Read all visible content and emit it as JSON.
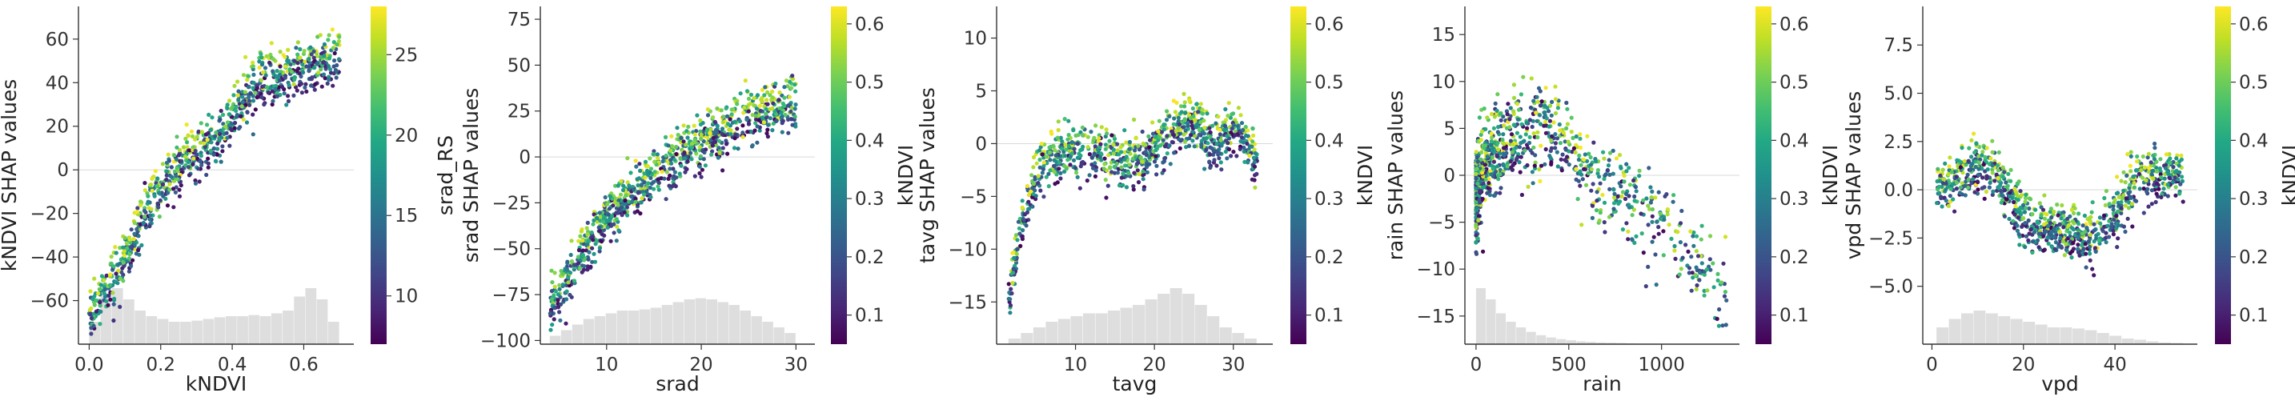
{
  "chart_data": [
    {
      "type": "scatter",
      "feature": "kNDVI",
      "xlabel": "kNDVI",
      "ylabel": "kNDVI SHAP values",
      "xlim": [
        -0.03,
        0.74
      ],
      "ylim": [
        -80,
        75
      ],
      "xticks": [
        0.0,
        0.2,
        0.4,
        0.6
      ],
      "xtick_labels": [
        "0.0",
        "0.2",
        "0.4",
        "0.6"
      ],
      "yticks": [
        -60,
        -40,
        -20,
        0,
        20,
        40,
        60
      ],
      "ytick_labels": [
        "−60",
        "−40",
        "−20",
        "0",
        "20",
        "40",
        "60"
      ],
      "colorbar": {
        "label": "srad_RS",
        "range": [
          7,
          28
        ],
        "ticks": [
          10,
          15,
          20,
          25
        ],
        "tick_labels": [
          "10",
          "15",
          "20",
          "25"
        ]
      },
      "trend": [
        [
          0.0,
          -68
        ],
        [
          0.05,
          -55
        ],
        [
          0.1,
          -40
        ],
        [
          0.15,
          -22
        ],
        [
          0.2,
          -8
        ],
        [
          0.25,
          0
        ],
        [
          0.3,
          8
        ],
        [
          0.35,
          13
        ],
        [
          0.4,
          25
        ],
        [
          0.45,
          38
        ],
        [
          0.5,
          42
        ],
        [
          0.55,
          43
        ],
        [
          0.6,
          48
        ],
        [
          0.65,
          50
        ],
        [
          0.7,
          50
        ]
      ],
      "hist": [
        0.4,
        0.9,
        1.0,
        0.8,
        0.6,
        0.5,
        0.45,
        0.4,
        0.4,
        0.42,
        0.45,
        0.48,
        0.5,
        0.5,
        0.52,
        0.5,
        0.55,
        0.6,
        0.85,
        1.0,
        0.8,
        0.4
      ]
    },
    {
      "type": "scatter",
      "feature": "srad",
      "xlabel": "srad",
      "ylabel": "srad SHAP values",
      "xlim": [
        3,
        32
      ],
      "ylim": [
        -102,
        82
      ],
      "xticks": [
        10,
        20,
        30
      ],
      "xtick_labels": [
        "10",
        "20",
        "30"
      ],
      "yticks": [
        -100,
        -75,
        -50,
        -25,
        0,
        25,
        50,
        75
      ],
      "ytick_labels": [
        "−100",
        "−75",
        "−50",
        "−25",
        "0",
        "25",
        "50",
        "75"
      ],
      "colorbar": {
        "label": "kNDVI",
        "range": [
          0.05,
          0.63
        ],
        "ticks": [
          0.1,
          0.2,
          0.3,
          0.4,
          0.5,
          0.6
        ],
        "tick_labels": [
          "0.1",
          "0.2",
          "0.3",
          "0.4",
          "0.5",
          "0.6"
        ]
      },
      "trend": [
        [
          4,
          -82
        ],
        [
          6,
          -65
        ],
        [
          8,
          -48
        ],
        [
          10,
          -33
        ],
        [
          12,
          -22
        ],
        [
          14,
          -14
        ],
        [
          16,
          -6
        ],
        [
          18,
          2
        ],
        [
          20,
          8
        ],
        [
          22,
          14
        ],
        [
          24,
          20
        ],
        [
          26,
          24
        ],
        [
          28,
          27
        ],
        [
          30,
          30
        ]
      ],
      "hist": [
        0.15,
        0.25,
        0.35,
        0.45,
        0.5,
        0.55,
        0.6,
        0.6,
        0.62,
        0.65,
        0.7,
        0.75,
        0.8,
        0.82,
        0.8,
        0.75,
        0.7,
        0.6,
        0.5,
        0.4,
        0.3,
        0.2
      ]
    },
    {
      "type": "scatter",
      "feature": "tavg",
      "xlabel": "tavg",
      "ylabel": "tavg SHAP values",
      "xlim": [
        0,
        35
      ],
      "ylim": [
        -19,
        13
      ],
      "xticks": [
        10,
        20,
        30
      ],
      "xtick_labels": [
        "10",
        "20",
        "30"
      ],
      "yticks": [
        -15,
        -10,
        -5,
        0,
        5,
        10
      ],
      "ytick_labels": [
        "−15",
        "−10",
        "−5",
        "0",
        "5",
        "10"
      ],
      "colorbar": {
        "label": "kNDVI",
        "range": [
          0.05,
          0.63
        ],
        "ticks": [
          0.1,
          0.2,
          0.3,
          0.4,
          0.5,
          0.6
        ],
        "tick_labels": [
          "0.1",
          "0.2",
          "0.3",
          "0.4",
          "0.5",
          "0.6"
        ]
      },
      "trend": [
        [
          1.5,
          -15
        ],
        [
          3,
          -8
        ],
        [
          5,
          -3
        ],
        [
          7,
          -1
        ],
        [
          10,
          -0.5
        ],
        [
          13,
          -1
        ],
        [
          16,
          -2
        ],
        [
          19,
          -1
        ],
        [
          22,
          1
        ],
        [
          25,
          2
        ],
        [
          27,
          0
        ],
        [
          29,
          1
        ],
        [
          31,
          1
        ],
        [
          33,
          -2
        ]
      ],
      "hist": [
        0.1,
        0.2,
        0.3,
        0.4,
        0.45,
        0.5,
        0.55,
        0.55,
        0.6,
        0.65,
        0.7,
        0.8,
        0.9,
        1.0,
        0.9,
        0.7,
        0.5,
        0.3,
        0.2,
        0.1
      ]
    },
    {
      "type": "scatter",
      "feature": "rain",
      "xlabel": "rain",
      "ylabel": "rain SHAP values",
      "xlim": [
        -60,
        1420
      ],
      "ylim": [
        -18,
        18
      ],
      "xticks": [
        0,
        500,
        1000
      ],
      "xtick_labels": [
        "0",
        "500",
        "1000"
      ],
      "yticks": [
        -15,
        -10,
        -5,
        0,
        5,
        10,
        15
      ],
      "ytick_labels": [
        "−15",
        "−10",
        "−5",
        "0",
        "5",
        "10",
        "15"
      ],
      "colorbar": {
        "label": "kNDVI",
        "range": [
          0.05,
          0.63
        ],
        "ticks": [
          0.1,
          0.2,
          0.3,
          0.4,
          0.5,
          0.6
        ],
        "tick_labels": [
          "0.1",
          "0.2",
          "0.3",
          "0.4",
          "0.5",
          "0.6"
        ]
      },
      "trend": [
        [
          0,
          -2
        ],
        [
          30,
          0
        ],
        [
          80,
          2
        ],
        [
          150,
          3
        ],
        [
          250,
          4
        ],
        [
          350,
          6
        ],
        [
          450,
          4
        ],
        [
          600,
          0
        ],
        [
          800,
          -2
        ],
        [
          1000,
          -5
        ],
        [
          1300,
          -12
        ]
      ],
      "hist": [
        1.0,
        0.8,
        0.55,
        0.4,
        0.3,
        0.22,
        0.16,
        0.12,
        0.09,
        0.07,
        0.05,
        0.04,
        0.03,
        0.025,
        0.02,
        0.015,
        0.01,
        0.01,
        0.008,
        0.006,
        0.005,
        0.004,
        0.003,
        0.003
      ]
    },
    {
      "type": "scatter",
      "feature": "vpd",
      "xlabel": "vpd",
      "ylabel": "vpd SHAP values",
      "xlim": [
        -2,
        58
      ],
      "ylim": [
        -8,
        9.5
      ],
      "xticks": [
        0,
        20,
        40
      ],
      "xtick_labels": [
        "0",
        "20",
        "40"
      ],
      "yticks": [
        -5.0,
        -2.5,
        0.0,
        2.5,
        5.0,
        7.5
      ],
      "ytick_labels": [
        "−5.0",
        "−2.5",
        "0.0",
        "2.5",
        "5.0",
        "7.5"
      ],
      "colorbar": {
        "label": "kNDVI",
        "range": [
          0.05,
          0.63
        ],
        "ticks": [
          0.1,
          0.2,
          0.3,
          0.4,
          0.5,
          0.6
        ],
        "tick_labels": [
          "0.1",
          "0.2",
          "0.3",
          "0.4",
          "0.5",
          "0.6"
        ]
      },
      "trend": [
        [
          1,
          0.2
        ],
        [
          5,
          0.5
        ],
        [
          10,
          1.5
        ],
        [
          14,
          1
        ],
        [
          17,
          -0.5
        ],
        [
          20,
          -1.5
        ],
        [
          25,
          -2
        ],
        [
          30,
          -2.3
        ],
        [
          35,
          -2.5
        ],
        [
          38,
          -2
        ],
        [
          42,
          -0.5
        ],
        [
          45,
          0.8
        ],
        [
          50,
          0.7
        ],
        [
          55,
          0.6
        ]
      ],
      "hist": [
        0.3,
        0.45,
        0.55,
        0.6,
        0.55,
        0.5,
        0.45,
        0.4,
        0.35,
        0.3,
        0.3,
        0.28,
        0.25,
        0.2,
        0.15,
        0.1,
        0.08,
        0.05,
        0.03,
        0.02
      ]
    }
  ]
}
